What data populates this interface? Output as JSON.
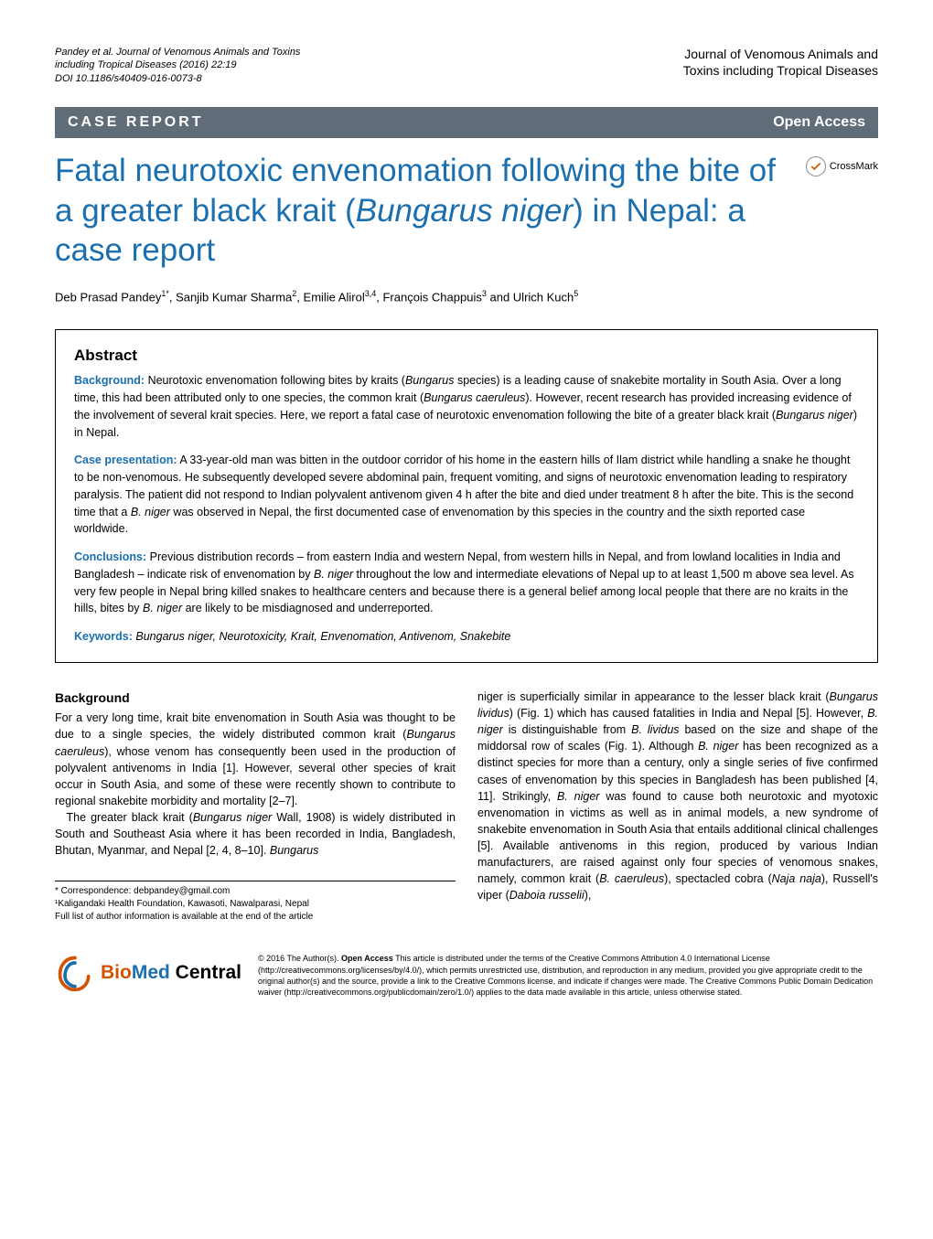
{
  "header": {
    "citation_line1": "Pandey et al. Journal of Venomous Animals and Toxins",
    "citation_line2": "including Tropical Diseases  (2016) 22:19",
    "citation_line3": "DOI 10.1186/s40409-016-0073-8",
    "journal_line1": "Journal of Venomous Animals and",
    "journal_line2": "Toxins including Tropical Diseases"
  },
  "band": {
    "left": "CASE REPORT",
    "right": "Open Access"
  },
  "crossmark": "CrossMark",
  "title_part1": "Fatal neurotoxic envenomation following the bite of a greater black krait (",
  "title_italic": "Bungarus niger",
  "title_part2": ") in Nepal: a case report",
  "authors_html": "Deb Prasad Pandey<sup>1*</sup>, Sanjib Kumar Sharma<sup>2</sup>, Emilie Alirol<sup>3,4</sup>, François Chappuis<sup>3</sup> and Ulrich Kuch<sup>5</sup>",
  "abstract": {
    "heading": "Abstract",
    "background_label": "Background:",
    "background_text": " Neurotoxic envenomation following bites by kraits (Bungarus species) is a leading cause of snakebite mortality in South Asia. Over a long time, this had been attributed only to one species, the common krait (Bungarus caeruleus). However, recent research has provided increasing evidence of the involvement of several krait species. Here, we report a fatal case of neurotoxic envenomation following the bite of a greater black krait (Bungarus niger) in Nepal.",
    "case_label": "Case presentation:",
    "case_text": " A 33-year-old man was bitten in the outdoor corridor of his home in the eastern hills of Ilam district while handling a snake he thought to be non-venomous. He subsequently developed severe abdominal pain, frequent vomiting, and signs of neurotoxic envenomation leading to respiratory paralysis. The patient did not respond to Indian polyvalent antivenom given 4 h after the bite and died under treatment 8 h after the bite. This is the second time that a B. niger was observed in Nepal, the first documented case of envenomation by this species in the country and the sixth reported case worldwide.",
    "conclusions_label": "Conclusions:",
    "conclusions_text": " Previous distribution records – from eastern India and western Nepal, from western hills in Nepal, and from lowland localities in India and Bangladesh – indicate risk of envenomation by B. niger throughout the low and intermediate elevations of Nepal up to at least 1,500 m above sea level. As very few people in Nepal bring killed snakes to healthcare centers and because there is a general belief among local people that there are no kraits in the hills, bites by B. niger are likely to be misdiagnosed and underreported.",
    "keywords_label": "Keywords:",
    "keywords_text": " Bungarus niger, Neurotoxicity, Krait, Envenomation, Antivenom, Snakebite"
  },
  "body": {
    "background_heading": "Background",
    "col1_p1": "For a very long time, krait bite envenomation in South Asia was thought to be due to a single species, the widely distributed common krait (Bungarus caeruleus), whose venom has consequently been used in the production of polyvalent antivenoms in India [1]. However, several other species of krait occur in South Asia, and some of these were recently shown to contribute to regional snakebite morbidity and mortality [2–7].",
    "col1_p2": "The greater black krait (Bungarus niger Wall, 1908) is widely distributed in South and Southeast Asia where it has been recorded in India, Bangladesh, Bhutan, Myanmar, and Nepal [2, 4, 8–10]. Bungarus",
    "col2_p1": "niger is superficially similar in appearance to the lesser black krait (Bungarus lividus) (Fig. 1) which has caused fatalities in India and Nepal [5]. However, B. niger is distinguishable from B. lividus based on the size and shape of the middorsal row of scales (Fig. 1). Although B. niger has been recognized as a distinct species for more than a century, only a single series of five confirmed cases of envenomation by this species in Bangladesh has been published [4, 11]. Strikingly, B. niger was found to cause both neurotoxic and myotoxic envenomation in victims as well as in animal models, a new syndrome of snakebite envenomation in South Asia that entails additional clinical challenges [5]. Available antivenoms in this region, produced by various Indian manufacturers, are raised against only four species of venomous snakes, namely, common krait (B. caeruleus), spectacled cobra (Naja naja), Russell's viper (Daboia russelii),"
  },
  "correspondence": {
    "line1": "* Correspondence: debpandey@gmail.com",
    "line2": "¹Kaligandaki Health Foundation, Kawasoti, Nawalparasi, Nepal",
    "line3": "Full list of author information is available at the end of the article"
  },
  "footer": {
    "bmc_bio": "Bio",
    "bmc_med": "Med",
    "bmc_central": " Central",
    "license": "© 2016 The Author(s). Open Access This article is distributed under the terms of the Creative Commons Attribution 4.0 International License (http://creativecommons.org/licenses/by/4.0/), which permits unrestricted use, distribution, and reproduction in any medium, provided you give appropriate credit to the original author(s) and the source, provide a link to the Creative Commons license, and indicate if changes were made. The Creative Commons Public Domain Dedication waiver (http://creativecommons.org/publicdomain/zero/1.0/) applies to the data made available in this article, unless otherwise stated."
  },
  "colors": {
    "band_bg": "#606c78",
    "accent_blue": "#1b6faf",
    "bmc_orange": "#d35400"
  }
}
